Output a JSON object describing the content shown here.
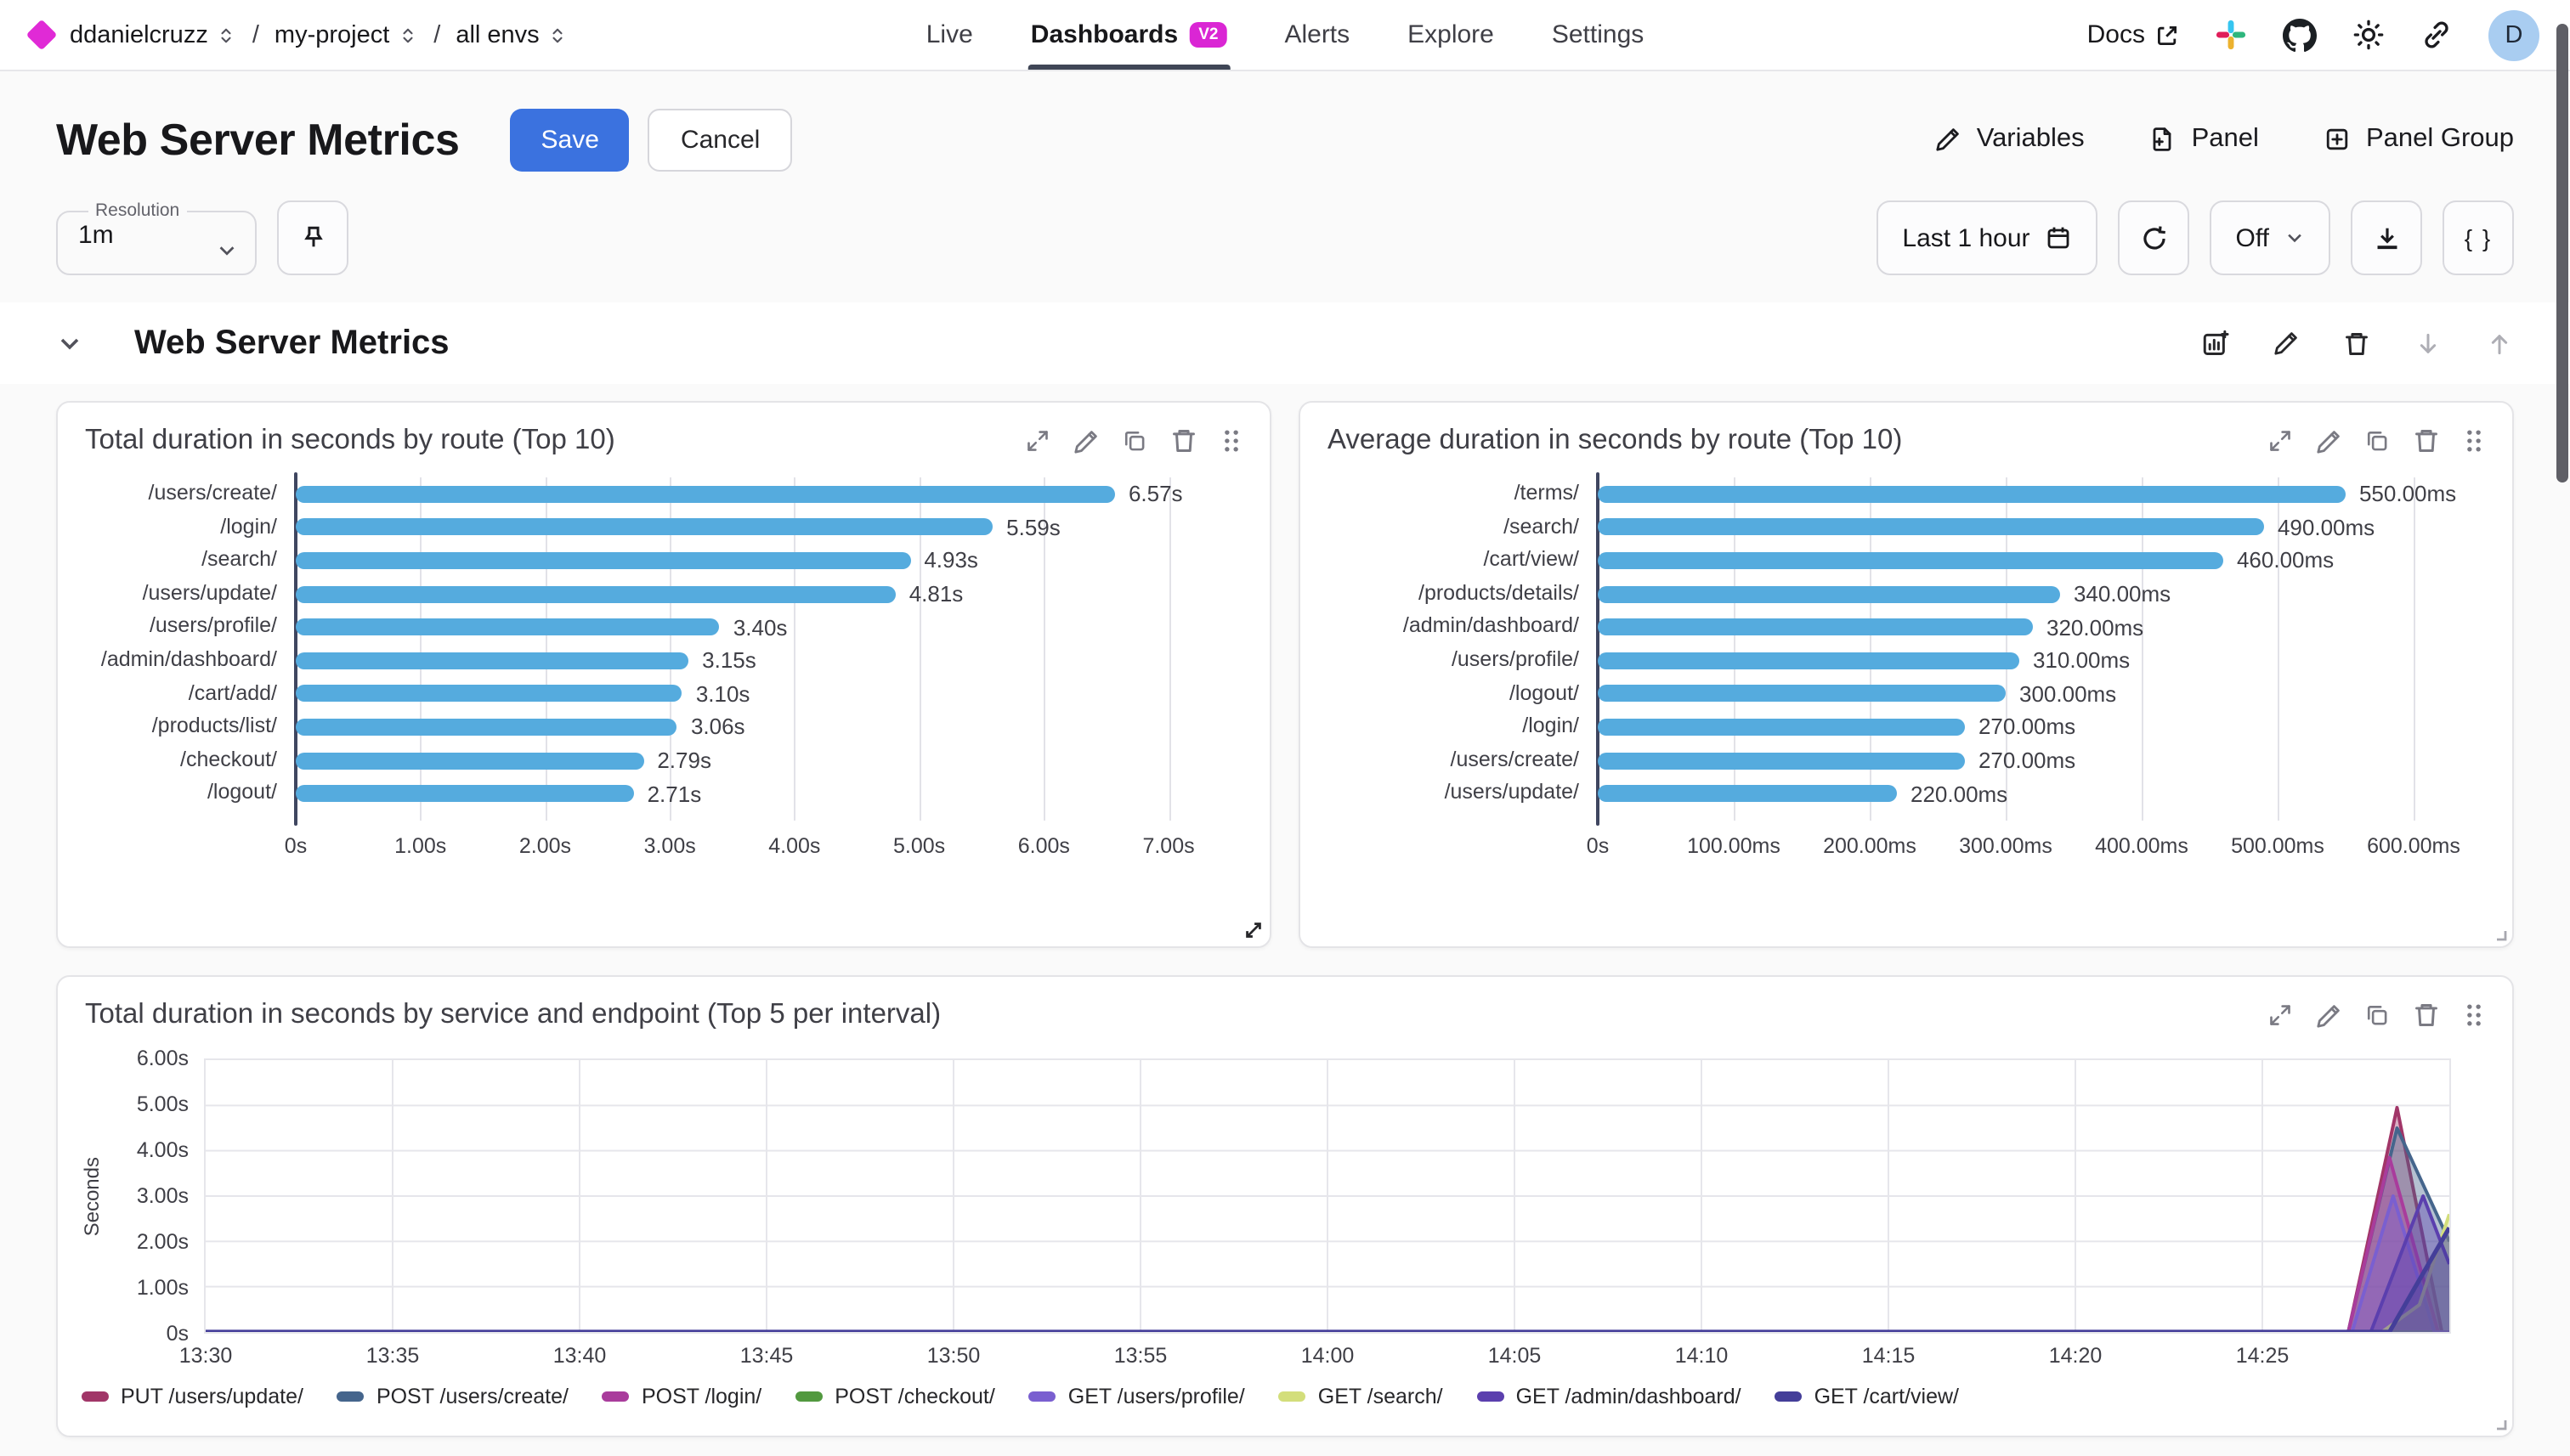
{
  "topnav": {
    "logo_color": "#e02ad6",
    "breadcrumbs": [
      "ddanielcruzz",
      "my-project",
      "all envs"
    ],
    "tabs": [
      {
        "label": "Live",
        "active": false
      },
      {
        "label": "Dashboards",
        "active": true,
        "badge": "V2"
      },
      {
        "label": "Alerts",
        "active": false
      },
      {
        "label": "Explore",
        "active": false
      },
      {
        "label": "Settings",
        "active": false
      }
    ],
    "badge_color": "#da26d4",
    "docs_label": "Docs",
    "icons": [
      "slack-icon",
      "github-icon",
      "theme-icon",
      "link-icon"
    ],
    "avatar_initial": "D",
    "avatar_color": "#a9cdf1"
  },
  "header": {
    "title": "Web Server Metrics",
    "save_label": "Save",
    "save_color": "#3b72df",
    "cancel_label": "Cancel",
    "actions": [
      {
        "label": "Variables",
        "icon": "pencil-icon"
      },
      {
        "label": "Panel",
        "icon": "file-plus-icon"
      },
      {
        "label": "Panel Group",
        "icon": "plus-square-icon"
      }
    ]
  },
  "controls": {
    "resolution_label": "Resolution",
    "resolution_value": "1m",
    "pin_icon": "pin-icon",
    "time_range_label": "Last 1 hour",
    "time_range_icon": "calendar-icon",
    "refresh_icon": "refresh-icon",
    "auto_refresh_label": "Off",
    "download_icon": "download-icon",
    "braces_label": "{ }"
  },
  "section": {
    "title": "Web Server Metrics",
    "action_icons": [
      "add-chart-icon",
      "pencil-icon",
      "trash-icon",
      "arrow-down-icon",
      "arrow-up-icon"
    ]
  },
  "panels": [
    {
      "title": "Total duration in seconds by route (Top 10)"
    },
    {
      "title": "Average duration in seconds by route (Top 10)"
    },
    {
      "title": "Total duration in seconds by service and endpoint (Top 5 per interval)"
    }
  ],
  "panel_action_icons": [
    "expand-icon",
    "pencil-icon",
    "copy-icon",
    "trash-icon",
    "drag-handle-icon"
  ],
  "chart_data": [
    {
      "type": "bar",
      "orientation": "horizontal",
      "title": "Total duration in seconds by route (Top 10)",
      "categories": [
        "/users/create/",
        "/login/",
        "/search/",
        "/users/update/",
        "/users/profile/",
        "/admin/dashboard/",
        "/cart/add/",
        "/products/list/",
        "/checkout/",
        "/logout/"
      ],
      "values": [
        6.57,
        5.59,
        4.93,
        4.81,
        3.4,
        3.15,
        3.1,
        3.06,
        2.79,
        2.71
      ],
      "value_labels": [
        "6.57s",
        "5.59s",
        "4.93s",
        "4.81s",
        "3.40s",
        "3.15s",
        "3.10s",
        "3.06s",
        "2.79s",
        "2.71s"
      ],
      "x_tick_values": [
        0,
        1,
        2,
        3,
        4,
        5,
        6,
        7
      ],
      "x_tick_labels": [
        "0s",
        "1.00s",
        "2.00s",
        "3.00s",
        "4.00s",
        "5.00s",
        "6.00s",
        "7.00s"
      ],
      "xlim": [
        0,
        7.62
      ],
      "bar_color": "#55abde",
      "grid": true
    },
    {
      "type": "bar",
      "orientation": "horizontal",
      "title": "Average duration in seconds by route (Top 10)",
      "categories": [
        "/terms/",
        "/search/",
        "/cart/view/",
        "/products/details/",
        "/admin/dashboard/",
        "/users/profile/",
        "/logout/",
        "/login/",
        "/users/create/",
        "/users/update/"
      ],
      "values": [
        550,
        490,
        460,
        340,
        320,
        310,
        300,
        270,
        270,
        220
      ],
      "value_labels": [
        "550.00ms",
        "490.00ms",
        "460.00ms",
        "340.00ms",
        "320.00ms",
        "310.00ms",
        "300.00ms",
        "270.00ms",
        "270.00ms",
        "220.00ms"
      ],
      "x_tick_values": [
        0,
        100,
        200,
        300,
        400,
        500,
        600
      ],
      "x_tick_labels": [
        "0s",
        "100.00ms",
        "200.00ms",
        "300.00ms",
        "400.00ms",
        "500.00ms",
        "600.00ms"
      ],
      "xlim": [
        0,
        655
      ],
      "bar_color": "#55abde",
      "grid": true
    },
    {
      "type": "area",
      "title": "Total duration in seconds by service and endpoint (Top 5 per interval)",
      "ylabel": "Seconds",
      "y_tick_values": [
        0,
        1,
        2,
        3,
        4,
        5,
        6
      ],
      "y_tick_labels": [
        "0s",
        "1.00s",
        "2.00s",
        "3.00s",
        "4.00s",
        "5.00s",
        "6.00s"
      ],
      "ylim": [
        0,
        6
      ],
      "x_tick_values": [
        0,
        5,
        10,
        15,
        20,
        25,
        30,
        35,
        40,
        45,
        50,
        55
      ],
      "x_tick_labels": [
        "13:30",
        "13:35",
        "13:40",
        "13:45",
        "13:50",
        "13:55",
        "14:00",
        "14:05",
        "14:10",
        "14:15",
        "14:20",
        "14:25"
      ],
      "xlim": [
        0,
        60
      ],
      "x_unit": "minutes after 13:30",
      "grid": true,
      "legend_position": "bottom",
      "fill_opacity": 0.4,
      "series": [
        {
          "name": "PUT /users/update/",
          "color": "#a13668",
          "points": [
            [
              0,
              0
            ],
            [
              57.3,
              0
            ],
            [
              58.6,
              4.95
            ],
            [
              59.8,
              0
            ],
            [
              60,
              0
            ]
          ]
        },
        {
          "name": "POST /users/create/",
          "color": "#45658c",
          "points": [
            [
              0,
              0
            ],
            [
              57.3,
              0
            ],
            [
              58.6,
              4.5
            ],
            [
              60,
              2.0
            ]
          ]
        },
        {
          "name": "POST /login/",
          "color": "#a93c9c",
          "points": [
            [
              0,
              0
            ],
            [
              57.3,
              0
            ],
            [
              58.4,
              3.85
            ],
            [
              59.7,
              0
            ],
            [
              60,
              0
            ]
          ]
        },
        {
          "name": "POST /checkout/",
          "color": "#52993f",
          "points": [
            [
              0,
              0
            ],
            [
              60,
              0
            ]
          ]
        },
        {
          "name": "GET /users/profile/",
          "color": "#7a5fd0",
          "points": [
            [
              0,
              0
            ],
            [
              57.4,
              0
            ],
            [
              58.5,
              3.0
            ],
            [
              59.6,
              0
            ],
            [
              60,
              0
            ]
          ]
        },
        {
          "name": "GET /search/",
          "color": "#d3de7b",
          "points": [
            [
              0,
              0
            ],
            [
              58.2,
              0
            ],
            [
              59.2,
              0.6
            ],
            [
              60,
              2.6
            ]
          ]
        },
        {
          "name": "GET /admin/dashboard/",
          "color": "#5b3fae",
          "points": [
            [
              0,
              0
            ],
            [
              57.9,
              0
            ],
            [
              59.3,
              3.0
            ],
            [
              60,
              1.5
            ]
          ]
        },
        {
          "name": "GET /cart/view/",
          "color": "#443e99",
          "points": [
            [
              0,
              0
            ],
            [
              58.4,
              0
            ],
            [
              60,
              2.3
            ]
          ]
        }
      ]
    }
  ]
}
